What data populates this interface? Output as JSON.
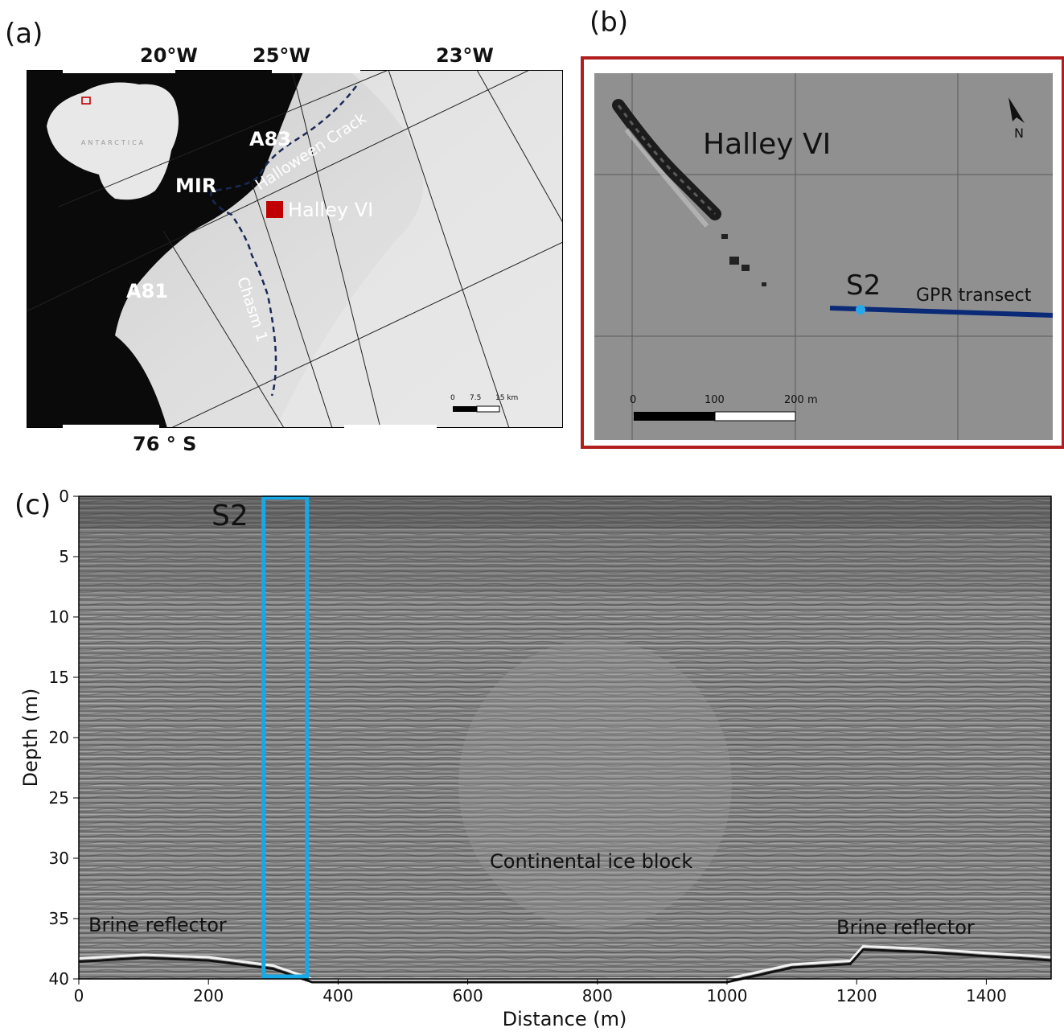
{
  "panels": {
    "a": {
      "label": "(a)",
      "lon_labels": [
        "20°W",
        "25°W",
        "23°W"
      ],
      "lat_label": "76 ° S",
      "inset_label": "ANTARCTICA",
      "feature_labels": {
        "a83": "A83",
        "mir": "MIR",
        "a81": "A81",
        "halloween": "Halloween Crack",
        "chasm": "Chasm 1",
        "halley": "Halley VI"
      },
      "scalebar": {
        "ticks": [
          "0",
          "7.5",
          "15 km"
        ]
      },
      "colors": {
        "station_marker": "#c00000",
        "crack_lines": "#1a2a55"
      }
    },
    "b": {
      "label": "(b)",
      "station_label": "Halley VI",
      "north_label": "N",
      "site_label": "S2",
      "transect_label": "GPR transect",
      "scalebar": {
        "ticks": [
          "0",
          "100",
          "200 m"
        ]
      },
      "colors": {
        "frame": "#b01e1e",
        "transect": "#0a2a78",
        "site_marker": "#28a8e8"
      }
    },
    "c": {
      "label": "(c)",
      "site_label": "S2",
      "annotations": {
        "continental": "Continental ice block",
        "brine_left": "Brine reflector",
        "brine_right": "Brine reflector"
      },
      "colors": {
        "site_box": "#17a9e6"
      }
    }
  },
  "chart_data": {
    "type": "heatmap",
    "title": "",
    "xlabel": "Distance (m)",
    "ylabel": "Depth (m)",
    "xlim": [
      0,
      1500
    ],
    "ylim": [
      40,
      0
    ],
    "x_ticks": [
      0,
      200,
      400,
      600,
      800,
      1000,
      1200,
      1400
    ],
    "y_ticks": [
      0,
      5,
      10,
      15,
      20,
      25,
      30,
      35,
      40
    ],
    "site_box": {
      "label": "S2",
      "x_range": [
        285,
        352
      ],
      "depth_range": [
        0.1,
        39.8
      ]
    },
    "brine_reflector_depth": [
      {
        "distance": 0,
        "depth": 38.3
      },
      {
        "distance": 100,
        "depth": 38.0
      },
      {
        "distance": 200,
        "depth": 38.2
      },
      {
        "distance": 300,
        "depth": 38.9
      },
      {
        "distance": 360,
        "depth": 40.0
      },
      {
        "distance": 1000,
        "depth": 40.0
      },
      {
        "distance": 1100,
        "depth": 38.8
      },
      {
        "distance": 1190,
        "depth": 38.5
      },
      {
        "distance": 1210,
        "depth": 37.3
      },
      {
        "distance": 1300,
        "depth": 37.5
      },
      {
        "distance": 1500,
        "depth": 38.2
      }
    ]
  }
}
